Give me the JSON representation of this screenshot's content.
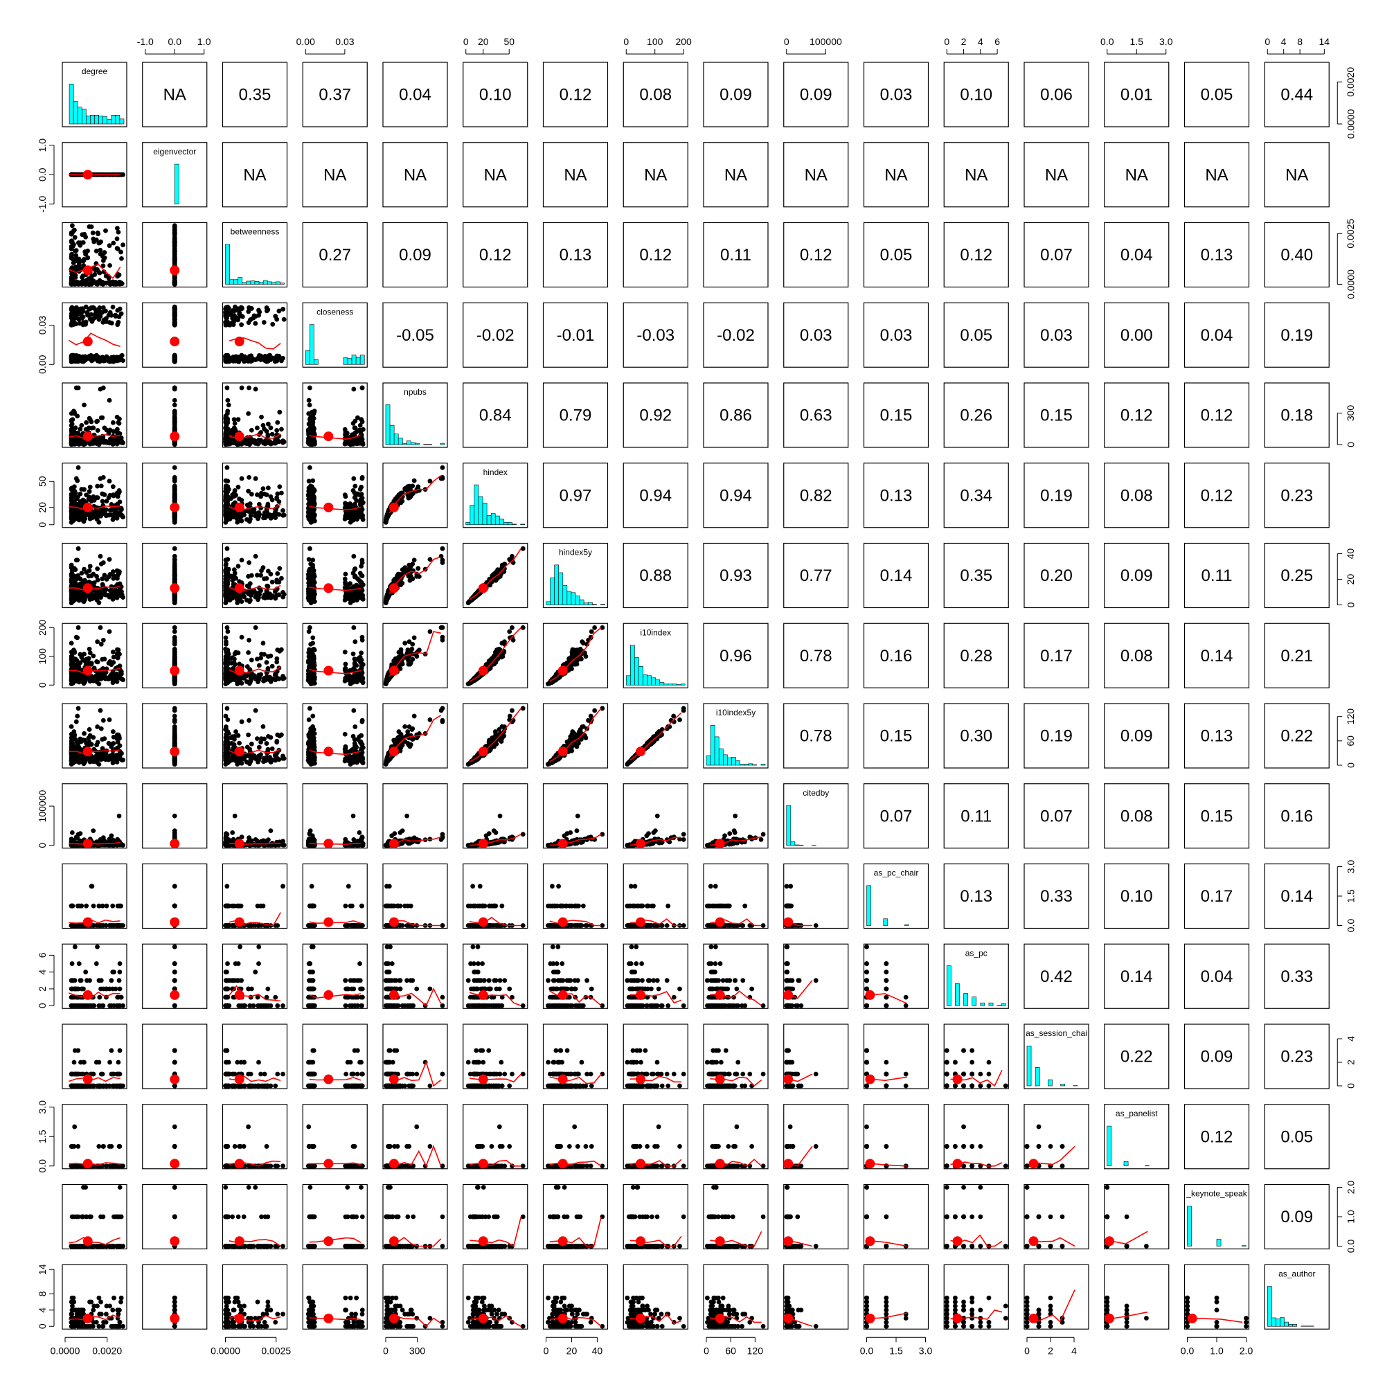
{
  "chart_data": {
    "type": "scatter",
    "subtype": "pairs-panels scatterplot matrix",
    "variables": [
      "degree",
      "eigenvector",
      "betweenness",
      "closeness",
      "npubs",
      "hindex",
      "hindex5y",
      "i10index",
      "i10index5y",
      "citedby",
      "as_pc_chair",
      "as_pc",
      "as_session_chair",
      "as_panelist",
      "as_keynote_speaker",
      "as_author"
    ],
    "diagonal_labels": [
      "degree",
      "eigenvector",
      "betweenness",
      "closeness",
      "npubs",
      "hindex",
      "hindex5y",
      "i10index",
      "i10index5y",
      "citedby",
      "as_pc_chair",
      "as_pc",
      "as_session_chai",
      "as_panelist",
      "_keynote_speak",
      "as_author"
    ],
    "correlations": [
      [
        "NA",
        "0.35",
        "0.37",
        "0.04",
        "0.10",
        "0.12",
        "0.08",
        "0.09",
        "0.09",
        "0.03",
        "0.10",
        "0.06",
        "0.01",
        "0.05",
        "0.44"
      ],
      [
        "NA",
        "NA",
        "NA",
        "NA",
        "NA",
        "NA",
        "NA",
        "NA",
        "NA",
        "NA",
        "NA",
        "NA",
        "NA",
        "NA"
      ],
      [
        "0.27",
        "0.09",
        "0.12",
        "0.13",
        "0.12",
        "0.11",
        "0.12",
        "0.05",
        "0.12",
        "0.07",
        "0.04",
        "0.13",
        "0.40"
      ],
      [
        "-0.05",
        "-0.02",
        "-0.01",
        "-0.03",
        "-0.02",
        "0.03",
        "0.03",
        "0.05",
        "0.03",
        "0.00",
        "0.04",
        "0.19"
      ],
      [
        "0.84",
        "0.79",
        "0.92",
        "0.86",
        "0.63",
        "0.15",
        "0.26",
        "0.15",
        "0.12",
        "0.12",
        "0.18"
      ],
      [
        "0.97",
        "0.94",
        "0.94",
        "0.82",
        "0.13",
        "0.34",
        "0.19",
        "0.08",
        "0.12",
        "0.23"
      ],
      [
        "0.88",
        "0.93",
        "0.77",
        "0.14",
        "0.35",
        "0.20",
        "0.09",
        "0.11",
        "0.25"
      ],
      [
        "0.96",
        "0.78",
        "0.16",
        "0.28",
        "0.17",
        "0.08",
        "0.14",
        "0.21"
      ],
      [
        "0.78",
        "0.15",
        "0.30",
        "0.19",
        "0.09",
        "0.13",
        "0.22"
      ],
      [
        "0.07",
        "0.11",
        "0.07",
        "0.08",
        "0.15",
        "0.16"
      ],
      [
        "0.13",
        "0.33",
        "0.10",
        "0.17",
        "0.14"
      ],
      [
        "0.42",
        "0.14",
        "0.04",
        "0.33"
      ],
      [
        "0.22",
        "0.09",
        "0.23"
      ],
      [
        "0.12",
        "0.05"
      ],
      [
        "0.09"
      ]
    ],
    "axis_ranges": [
      [
        0,
        0.0028
      ],
      [
        -1,
        1
      ],
      [
        0,
        0.0029
      ],
      [
        0,
        0.045
      ],
      [
        0,
        560
      ],
      [
        0,
        68
      ],
      [
        0,
        46
      ],
      [
        0,
        205
      ],
      [
        0,
        145
      ],
      [
        0,
        150000
      ],
      [
        0,
        3
      ],
      [
        0,
        7
      ],
      [
        0,
        5
      ],
      [
        0,
        3
      ],
      [
        0,
        2
      ],
      [
        0,
        14.5
      ]
    ],
    "axis_ticks": {
      "top": [
        {
          "col": 1,
          "ticks": [
            {
              "v": -1,
              "label": "-1.0"
            },
            {
              "v": 0,
              "label": "0.0"
            },
            {
              "v": 1,
              "label": "1.0"
            }
          ]
        },
        {
          "col": 3,
          "ticks": [
            {
              "v": 0,
              "label": "0.00"
            },
            {
              "v": 0.03,
              "label": "0.03"
            }
          ]
        },
        {
          "col": 5,
          "ticks": [
            {
              "v": 0,
              "label": "0"
            },
            {
              "v": 20,
              "label": "20"
            },
            {
              "v": 50,
              "label": "50"
            }
          ]
        },
        {
          "col": 7,
          "ticks": [
            {
              "v": 0,
              "label": "0"
            },
            {
              "v": 100,
              "label": "100"
            },
            {
              "v": 200,
              "label": "200"
            }
          ]
        },
        {
          "col": 9,
          "ticks": [
            {
              "v": 0,
              "label": "0"
            },
            {
              "v": 100000,
              "label": "100000"
            }
          ]
        },
        {
          "col": 11,
          "ticks": [
            {
              "v": 0,
              "label": "0"
            },
            {
              "v": 2,
              "label": "2"
            },
            {
              "v": 4,
              "label": "4"
            },
            {
              "v": 6,
              "label": "6"
            }
          ]
        },
        {
          "col": 13,
          "ticks": [
            {
              "v": 0,
              "label": "0.0"
            },
            {
              "v": 1.5,
              "label": "1.5"
            },
            {
              "v": 3,
              "label": "3.0"
            }
          ]
        },
        {
          "col": 15,
          "ticks": [
            {
              "v": 0,
              "label": "0"
            },
            {
              "v": 4,
              "label": "4"
            },
            {
              "v": 8,
              "label": "8"
            },
            {
              "v": 14,
              "label": "14"
            }
          ]
        }
      ],
      "bottom": [
        {
          "col": 0,
          "ticks": [
            {
              "v": 0,
              "label": "0.0000"
            },
            {
              "v": 0.002,
              "label": "0.0020"
            }
          ]
        },
        {
          "col": 2,
          "ticks": [
            {
              "v": 0,
              "label": "0.0000"
            },
            {
              "v": 0.0025,
              "label": "0.0025"
            }
          ]
        },
        {
          "col": 4,
          "ticks": [
            {
              "v": 0,
              "label": "0"
            },
            {
              "v": 300,
              "label": "300"
            }
          ]
        },
        {
          "col": 6,
          "ticks": [
            {
              "v": 0,
              "label": "0"
            },
            {
              "v": 20,
              "label": "20"
            },
            {
              "v": 40,
              "label": "40"
            }
          ]
        },
        {
          "col": 8,
          "ticks": [
            {
              "v": 0,
              "label": "0"
            },
            {
              "v": 60,
              "label": "60"
            },
            {
              "v": 120,
              "label": "120"
            }
          ]
        },
        {
          "col": 10,
          "ticks": [
            {
              "v": 0,
              "label": "0.0"
            },
            {
              "v": 1.5,
              "label": "1.5"
            },
            {
              "v": 3,
              "label": "3.0"
            }
          ]
        },
        {
          "col": 12,
          "ticks": [
            {
              "v": 0,
              "label": "0"
            },
            {
              "v": 2,
              "label": "2"
            },
            {
              "v": 4,
              "label": "4"
            }
          ]
        },
        {
          "col": 14,
          "ticks": [
            {
              "v": 0,
              "label": "0.0"
            },
            {
              "v": 1,
              "label": "1.0"
            },
            {
              "v": 2,
              "label": "2.0"
            }
          ]
        }
      ],
      "left": [
        {
          "row": 1,
          "ticks": [
            {
              "v": -1,
              "label": "-1.0"
            },
            {
              "v": 0,
              "label": "0.0"
            },
            {
              "v": 1,
              "label": "1.0"
            }
          ]
        },
        {
          "row": 3,
          "ticks": [
            {
              "v": 0,
              "label": "0.00"
            },
            {
              "v": 0.03,
              "label": "0.03"
            }
          ]
        },
        {
          "row": 5,
          "ticks": [
            {
              "v": 0,
              "label": "0"
            },
            {
              "v": 20,
              "label": "20"
            },
            {
              "v": 50,
              "label": "50"
            }
          ]
        },
        {
          "row": 7,
          "ticks": [
            {
              "v": 0,
              "label": "0"
            },
            {
              "v": 100,
              "label": "100"
            },
            {
              "v": 200,
              "label": "200"
            }
          ]
        },
        {
          "row": 9,
          "ticks": [
            {
              "v": 0,
              "label": "0"
            },
            {
              "v": 100000,
              "label": "100000"
            }
          ]
        },
        {
          "row": 11,
          "ticks": [
            {
              "v": 0,
              "label": "0"
            },
            {
              "v": 2,
              "label": "2"
            },
            {
              "v": 4,
              "label": "4"
            },
            {
              "v": 6,
              "label": "6"
            }
          ]
        },
        {
          "row": 13,
          "ticks": [
            {
              "v": 0,
              "label": "0.0"
            },
            {
              "v": 1.5,
              "label": "1.5"
            },
            {
              "v": 3,
              "label": "3.0"
            }
          ]
        },
        {
          "row": 15,
          "ticks": [
            {
              "v": 0,
              "label": "0"
            },
            {
              "v": 4,
              "label": "4"
            },
            {
              "v": 8,
              "label": "8"
            },
            {
              "v": 14,
              "label": "14"
            }
          ]
        }
      ],
      "right": [
        {
          "row": 0,
          "ticks": [
            {
              "v": 0,
              "label": "0.0000"
            },
            {
              "v": 0.002,
              "label": "0.0020"
            }
          ]
        },
        {
          "row": 2,
          "ticks": [
            {
              "v": 0,
              "label": "0.0000"
            },
            {
              "v": 0.0025,
              "label": "0.0025"
            }
          ]
        },
        {
          "row": 4,
          "ticks": [
            {
              "v": 0,
              "label": "0"
            },
            {
              "v": 300,
              "label": "300"
            }
          ]
        },
        {
          "row": 6,
          "ticks": [
            {
              "v": 0,
              "label": "0"
            },
            {
              "v": 20,
              "label": "20"
            },
            {
              "v": 40,
              "label": "40"
            }
          ]
        },
        {
          "row": 8,
          "ticks": [
            {
              "v": 0,
              "label": "0"
            },
            {
              "v": 60,
              "label": "60"
            },
            {
              "v": 120,
              "label": "120"
            }
          ]
        },
        {
          "row": 10,
          "ticks": [
            {
              "v": 0,
              "label": "0.0"
            },
            {
              "v": 1.5,
              "label": "1.5"
            },
            {
              "v": 3,
              "label": "3.0"
            }
          ]
        },
        {
          "row": 12,
          "ticks": [
            {
              "v": 0,
              "label": "0"
            },
            {
              "v": 2,
              "label": "2"
            },
            {
              "v": 4,
              "label": "4"
            }
          ]
        },
        {
          "row": 14,
          "ticks": [
            {
              "v": 0,
              "label": "0.0"
            },
            {
              "v": 1,
              "label": "1.0"
            },
            {
              "v": 2,
              "label": "2.0"
            }
          ]
        }
      ]
    },
    "diagonal": "histogram",
    "lower": "scatter with red smoother and correlation ellipse",
    "upper": "correlation coefficient",
    "colors": {
      "hist_fill": "#00ffff",
      "smoother": "#ff0000",
      "points": "#000000",
      "panel_border": "#000000"
    }
  }
}
